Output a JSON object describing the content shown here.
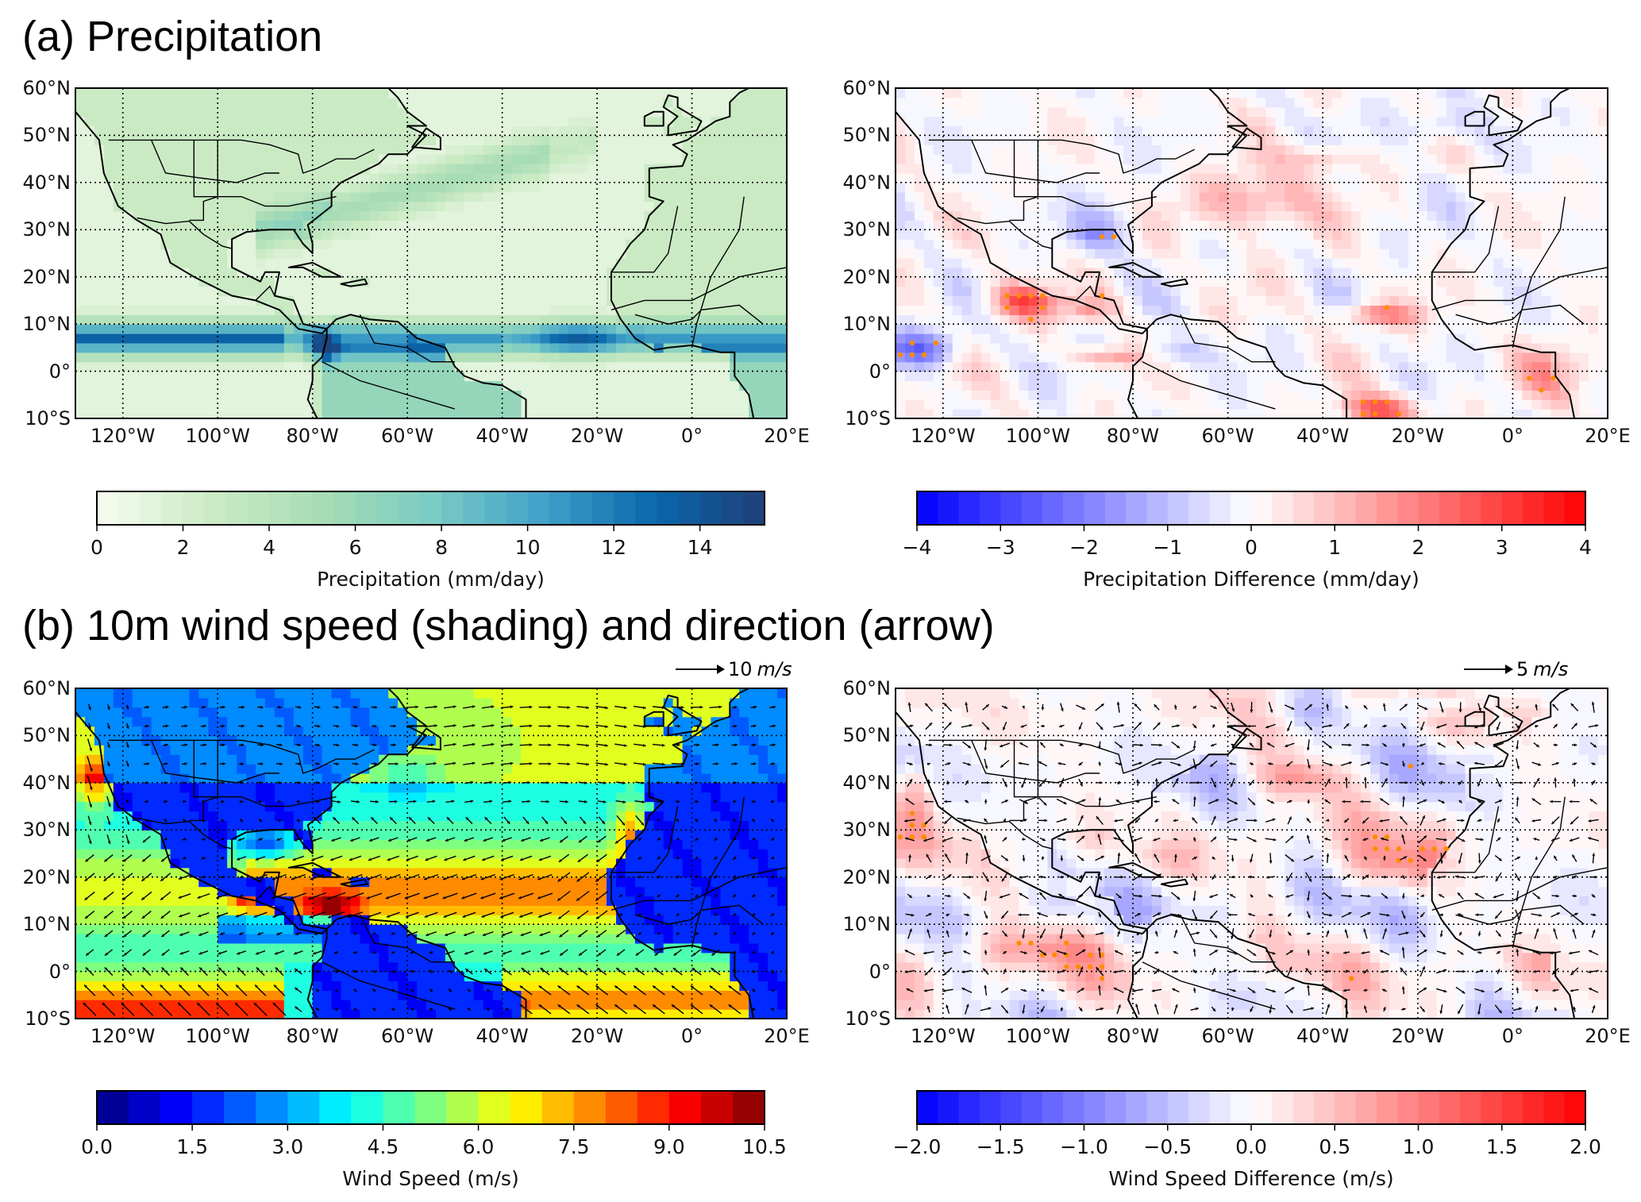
{
  "section_a_title": "(a) Precipitation",
  "section_b_title": "(b) 10m wind speed (shading) and direction (arrow)",
  "chart_data": [
    {
      "id": "precip",
      "type": "heatmap",
      "title": "",
      "field": "precipitation",
      "lon_range": [
        -130,
        20
      ],
      "lat_range": [
        -10,
        60
      ],
      "lat_ticks": [
        "60°N",
        "50°N",
        "40°N",
        "30°N",
        "20°N",
        "10°N",
        "0°",
        "10°S"
      ],
      "lon_ticks": [
        "120°W",
        "100°W",
        "80°W",
        "60°W",
        "40°W",
        "20°W",
        "0°",
        "20°E"
      ],
      "colorbar": {
        "label": "Precipitation (mm/day)",
        "ticks": [
          "0",
          "2",
          "4",
          "6",
          "8",
          "10",
          "12",
          "14"
        ],
        "tick_values": [
          0,
          2,
          4,
          6,
          8,
          10,
          12,
          14
        ],
        "range": [
          0,
          15.5
        ],
        "levels": 31,
        "colormap": [
          "#f7fcf0",
          "#ccebc5",
          "#a8ddb5",
          "#7bccc4",
          "#43a2ca",
          "#0868ac",
          "#1f3f78"
        ]
      },
      "stippling": false,
      "arrows": false
    },
    {
      "id": "precip-diff",
      "type": "heatmap",
      "field": "precipitation_difference",
      "lon_range": [
        -130,
        20
      ],
      "lat_range": [
        -10,
        60
      ],
      "lat_ticks": [
        "60°N",
        "50°N",
        "40°N",
        "30°N",
        "20°N",
        "10°N",
        "0°",
        "10°S"
      ],
      "lon_ticks": [
        "120°W",
        "100°W",
        "80°W",
        "60°W",
        "40°W",
        "20°W",
        "0°",
        "20°E"
      ],
      "colorbar": {
        "label": "Precipitation Difference (mm/day)",
        "ticks": [
          "−4",
          "−3",
          "−2",
          "−1",
          "0",
          "1",
          "2",
          "3",
          "4"
        ],
        "tick_values": [
          -4,
          -3,
          -2,
          -1,
          0,
          1,
          2,
          3,
          4
        ],
        "range": [
          -4,
          4
        ],
        "levels": 32,
        "colormap": [
          "#0000ff",
          "#ffffff",
          "#ff0000"
        ]
      },
      "stippling": true,
      "stipple_color": "#ff8c00",
      "arrows": false
    },
    {
      "id": "wind",
      "type": "heatmap",
      "field": "wind_speed",
      "lon_range": [
        -130,
        20
      ],
      "lat_range": [
        -10,
        60
      ],
      "lat_ticks": [
        "60°N",
        "50°N",
        "40°N",
        "30°N",
        "20°N",
        "10°N",
        "0°",
        "10°S"
      ],
      "lon_ticks": [
        "120°W",
        "100°W",
        "80°W",
        "60°W",
        "40°W",
        "20°W",
        "0°",
        "20°E"
      ],
      "colorbar": {
        "label": "Wind Speed (m/s)",
        "ticks": [
          "0.0",
          "1.5",
          "3.0",
          "4.5",
          "6.0",
          "7.5",
          "9.0",
          "10.5"
        ],
        "tick_values": [
          0,
          1.5,
          3,
          4.5,
          6,
          7.5,
          9,
          10.5
        ],
        "range": [
          0,
          10.5
        ],
        "levels": 21,
        "colormap": [
          "#00007f",
          "#0000ff",
          "#007fff",
          "#00ffff",
          "#7fff7f",
          "#ffff00",
          "#ff7f00",
          "#ff0000",
          "#7f0000"
        ]
      },
      "stippling": false,
      "arrows": true,
      "reference_arrow": {
        "value": "10",
        "unit": "m/s"
      }
    },
    {
      "id": "wind-diff",
      "type": "heatmap",
      "field": "wind_speed_difference",
      "lon_range": [
        -130,
        20
      ],
      "lat_range": [
        -10,
        60
      ],
      "lat_ticks": [
        "60°N",
        "50°N",
        "40°N",
        "30°N",
        "20°N",
        "10°N",
        "0°",
        "10°S"
      ],
      "lon_ticks": [
        "120°W",
        "100°W",
        "80°W",
        "60°W",
        "40°W",
        "20°W",
        "0°",
        "20°E"
      ],
      "colorbar": {
        "label": "Wind Speed Difference (m/s)",
        "ticks": [
          "−2.0",
          "−1.5",
          "−1.0",
          "−0.5",
          "0.0",
          "0.5",
          "1.0",
          "1.5",
          "2.0"
        ],
        "tick_values": [
          -2,
          -1.5,
          -1,
          -0.5,
          0,
          0.5,
          1,
          1.5,
          2
        ],
        "range": [
          -2,
          2
        ],
        "levels": 32,
        "colormap": [
          "#0000ff",
          "#ffffff",
          "#ff0000"
        ]
      },
      "stippling": true,
      "stipple_color": "#ff8c00",
      "arrows": true,
      "reference_arrow": {
        "value": "5",
        "unit": "m/s"
      }
    }
  ]
}
